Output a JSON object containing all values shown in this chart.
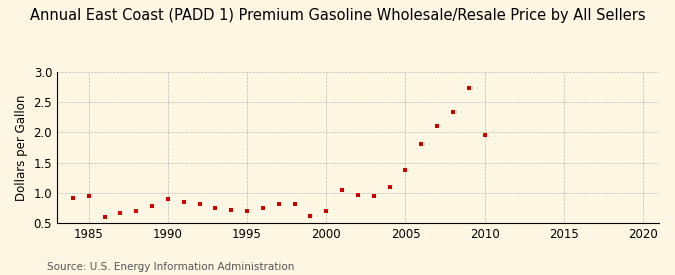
{
  "title": "Annual East Coast (PADD 1) Premium Gasoline Wholesale/Resale Price by All Sellers",
  "ylabel": "Dollars per Gallon",
  "source": "Source: U.S. Energy Information Administration",
  "background_color": "#fdf6e3",
  "marker_color": "#cc0000",
  "years": [
    1984,
    1985,
    1986,
    1987,
    1988,
    1989,
    1990,
    1991,
    1992,
    1993,
    1994,
    1995,
    1996,
    1997,
    1998,
    1999,
    2000,
    2001,
    2002,
    2003,
    2004,
    2005,
    2006,
    2007,
    2008,
    2009,
    2010
  ],
  "values": [
    0.92,
    0.95,
    0.6,
    0.66,
    0.69,
    0.78,
    0.9,
    0.85,
    0.82,
    0.74,
    0.72,
    0.7,
    0.74,
    0.82,
    0.82,
    0.62,
    0.7,
    1.04,
    0.97,
    0.94,
    1.09,
    1.37,
    1.8,
    2.1,
    2.33,
    2.74,
    1.96
  ],
  "xlim": [
    1983,
    2021
  ],
  "ylim": [
    0.5,
    3.0
  ],
  "xticks": [
    1985,
    1990,
    1995,
    2000,
    2005,
    2010,
    2015,
    2020
  ],
  "yticks": [
    0.5,
    1.0,
    1.5,
    2.0,
    2.5,
    3.0
  ],
  "grid_color": "#aaaaaa",
  "title_fontsize": 10.5,
  "label_fontsize": 8.5,
  "tick_fontsize": 8.5,
  "source_fontsize": 7.5
}
